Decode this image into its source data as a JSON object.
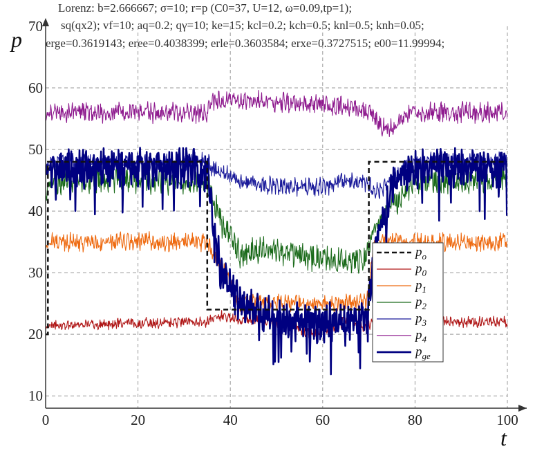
{
  "chart_data": {
    "type": "line",
    "title_lines": [
      "Lorenz: b=2.666667; σ=10; r=p (C0=37, U=12, ω=0.09,tp=1);",
      "sq(qx2); vf=10; aq=0.2; qγ=10; ke=15; kcl=0.2; kch=0.5; knl=0.5; knh=0.05;",
      "erge=0.3619143; eree=0.4038399; erle=0.3603584; erxe=0.3727515; e00=11.99994;"
    ],
    "xlabel": "t",
    "ylabel": "p",
    "xlim": [
      0,
      100
    ],
    "ylim": [
      8,
      70
    ],
    "xticks": [
      0,
      20,
      40,
      60,
      80,
      100
    ],
    "yticks": [
      10,
      20,
      30,
      40,
      50,
      60,
      70
    ],
    "grid": true,
    "legend_position": "center-right",
    "series": [
      {
        "name": "po",
        "color": "#111111",
        "style": "dashed",
        "x": [
          0,
          0.5,
          0.5,
          35,
          35,
          70,
          70,
          100
        ],
        "y": [
          20,
          20,
          48,
          48,
          24,
          24,
          48,
          48
        ]
      },
      {
        "name": "p0",
        "color": "#b01818",
        "base": {
          "x": [
            0,
            1,
            35,
            38,
            42,
            50,
            58,
            66,
            69.5,
            71,
            100
          ],
          "y": [
            21,
            21.5,
            22,
            23,
            22.5,
            22,
            20,
            22.5,
            21,
            22,
            22
          ]
        },
        "noise": 0.7
      },
      {
        "name": "p1",
        "color": "#ee6a10",
        "base": {
          "x": [
            0,
            1,
            35,
            38,
            42,
            50,
            60,
            69.5,
            71,
            100
          ],
          "y": [
            34,
            35,
            35,
            31,
            25,
            25,
            25,
            25,
            35,
            35
          ]
        },
        "noise": 1.2
      },
      {
        "name": "p2",
        "color": "#1a6a1a",
        "base": {
          "x": [
            0,
            1,
            35,
            38,
            42,
            48,
            55,
            62,
            69,
            71,
            75,
            80,
            100
          ],
          "y": [
            42,
            45,
            45,
            38,
            33,
            34,
            33,
            32,
            32,
            37,
            41,
            45,
            45
          ]
        },
        "noise": 1.8
      },
      {
        "name": "p3",
        "color": "#1a1a9a",
        "base": {
          "x": [
            0,
            1,
            35,
            36,
            42,
            50,
            60,
            68,
            70,
            72,
            75,
            78,
            82,
            100
          ],
          "y": [
            47,
            48,
            48,
            47,
            45,
            44,
            44,
            45,
            44,
            43,
            45,
            47,
            48,
            48
          ]
        },
        "noise": 1.2
      },
      {
        "name": "p4",
        "color": "#8e1a8e",
        "base": {
          "x": [
            0,
            1,
            35,
            36,
            45,
            55,
            65,
            70,
            74,
            77,
            80,
            100
          ],
          "y": [
            55,
            56,
            56,
            58,
            58,
            57.5,
            57,
            56,
            53,
            55,
            56,
            56
          ]
        },
        "noise": 1.3
      },
      {
        "name": "pge",
        "color": "#000080",
        "bold": true,
        "base": {
          "x": [
            0,
            1,
            35,
            36,
            38,
            42,
            48,
            55,
            62,
            69.5,
            70.5,
            72,
            75,
            80,
            100
          ],
          "y": [
            46,
            47,
            47,
            40,
            30,
            25,
            23,
            22,
            22,
            22,
            28,
            36,
            44,
            47,
            47
          ]
        },
        "noise": 2.5
      }
    ]
  }
}
